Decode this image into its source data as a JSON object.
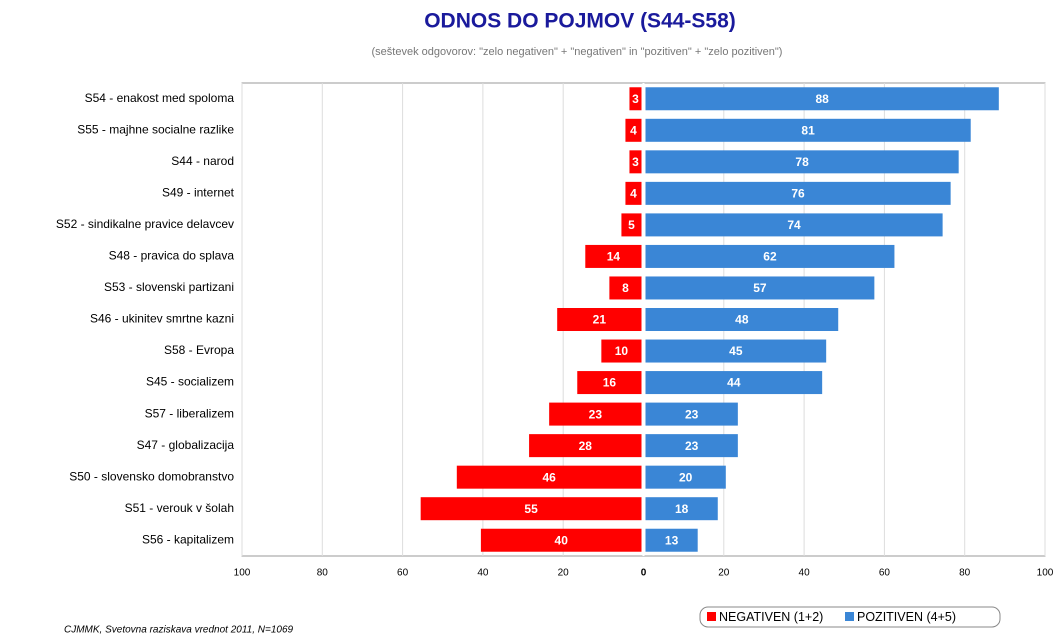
{
  "chart_data": {
    "type": "diverging_bar",
    "title": "ODNOS DO POJMOV (S44-S58)",
    "subtitle": "(seštevek odgovorov: \"zelo negativen\" + \"negativen\" in \"pozitiven\" + \"zelo pozitiven\")",
    "source": "CJMMK, Svetovna raziskava vrednot 2011, N=1069",
    "categories": [
      "S54 - enakost med spoloma",
      "S55 - majhne socialne razlike",
      "S44 - narod",
      "S49 - internet",
      "S52 - sindikalne pravice delavcev",
      "S48 - pravica do splava",
      "S53 - slovenski partizani",
      "S46 - ukinitev smrtne kazni",
      "S58 - Evropa",
      "S45 - socializem",
      "S57 - liberalizem",
      "S47 - globalizacija",
      "S50 - slovensko domobranstvo",
      "S51 - verouk v šolah",
      "S56 - kapitalizem"
    ],
    "series": [
      {
        "name": "NEGATIVEN (1+2)",
        "color": "#ff0000",
        "values": [
          3,
          4,
          3,
          4,
          5,
          14,
          8,
          21,
          10,
          16,
          23,
          28,
          46,
          55,
          40
        ]
      },
      {
        "name": "POZITIVEN (4+5)",
        "color": "#3a86d6",
        "values": [
          88,
          81,
          78,
          76,
          74,
          62,
          57,
          48,
          45,
          44,
          23,
          23,
          20,
          18,
          13
        ]
      }
    ],
    "xlim": [
      -100,
      100
    ],
    "xticks": [
      {
        "value": -100,
        "label": "100"
      },
      {
        "value": -80,
        "label": "80"
      },
      {
        "value": -60,
        "label": "60"
      },
      {
        "value": -40,
        "label": "40"
      },
      {
        "value": -20,
        "label": "20"
      },
      0,
      20,
      40,
      60,
      80,
      100
    ],
    "grid": true,
    "legend": "bottom-right"
  }
}
